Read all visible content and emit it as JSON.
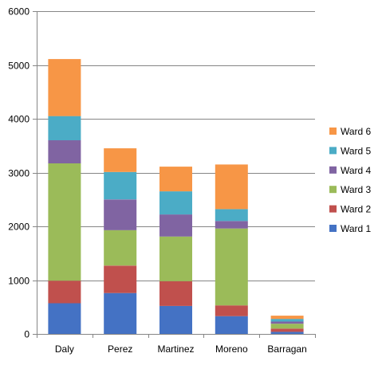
{
  "chart_data": {
    "type": "bar",
    "stacked": true,
    "title": "",
    "xlabel": "",
    "ylabel": "",
    "ylim": [
      0,
      6000
    ],
    "yticks": [
      0,
      1000,
      2000,
      3000,
      4000,
      5000,
      6000
    ],
    "grid": true,
    "legend_position": "right",
    "categories": [
      "Daly",
      "Perez",
      "Martinez",
      "Moreno",
      "Barragan"
    ],
    "series": [
      {
        "name": "Ward 1",
        "color": "#4472C4",
        "values": [
          570,
          760,
          520,
          330,
          40
        ]
      },
      {
        "name": "Ward 2",
        "color": "#C0504D",
        "values": [
          420,
          510,
          460,
          200,
          60
        ]
      },
      {
        "name": "Ward 3",
        "color": "#9BBB59",
        "values": [
          2180,
          660,
          830,
          1430,
          90
        ]
      },
      {
        "name": "Ward 4",
        "color": "#8064A2",
        "values": [
          430,
          570,
          410,
          140,
          40
        ]
      },
      {
        "name": "Ward 5",
        "color": "#4BACC6",
        "values": [
          450,
          510,
          430,
          220,
          50
        ]
      },
      {
        "name": "Ward 6",
        "color": "#F79646",
        "values": [
          1060,
          440,
          460,
          830,
          60
        ]
      }
    ]
  }
}
